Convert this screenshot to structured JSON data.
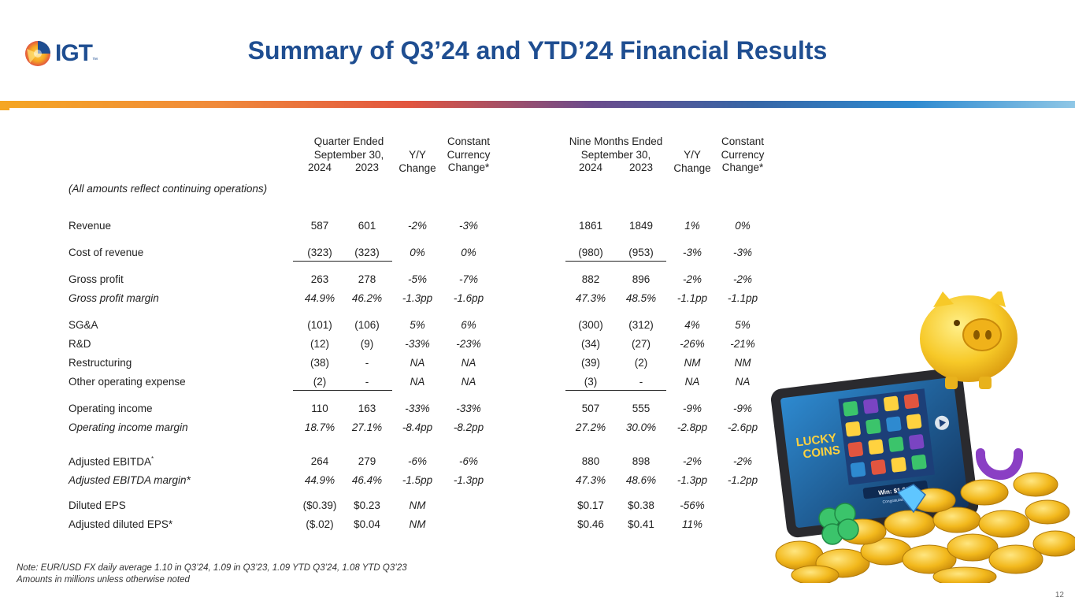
{
  "title": "Summary of Q3’24 and YTD’24 Financial Results",
  "logo": {
    "text": "IGT",
    "tm": "™"
  },
  "headers": {
    "quarter_group": [
      "Quarter Ended",
      "September 30,"
    ],
    "nine_group": [
      "Nine Months Ended",
      "September 30,"
    ],
    "year_2024": "2024",
    "year_2023": "2023",
    "yy": [
      "Y/Y",
      "Change"
    ],
    "cc": [
      "Constant",
      "Currency",
      "Change*"
    ]
  },
  "continuing_note": "(All amounts reflect continuing operations)",
  "rows": [
    {
      "label": "Revenue",
      "italic": false,
      "q24": "587",
      "q23": "601",
      "qyy": "-2%",
      "qcc": "-3%",
      "n24": "1861",
      "n23": "1849",
      "nyy": "1%",
      "ncc": "0%"
    },
    {
      "label": "Cost of revenue",
      "italic": false,
      "q24": "(323)",
      "q23": "(323)",
      "qyy": "0%",
      "qcc": "0%",
      "n24": "(980)",
      "n23": "(953)",
      "nyy": "-3%",
      "ncc": "-3%"
    },
    {
      "label": "Gross profit",
      "italic": false,
      "q24": "263",
      "q23": "278",
      "qyy": "-5%",
      "qcc": "-7%",
      "n24": "882",
      "n23": "896",
      "nyy": "-2%",
      "ncc": "-2%"
    },
    {
      "label": "Gross profit margin",
      "italic": true,
      "q24": "44.9%",
      "q23": "46.2%",
      "qyy": "-1.3pp",
      "qcc": "-1.6pp",
      "n24": "47.3%",
      "n23": "48.5%",
      "nyy": "-1.1pp",
      "ncc": "-1.1pp"
    },
    {
      "label": "SG&A",
      "italic": false,
      "q24": "(101)",
      "q23": "(106)",
      "qyy": "5%",
      "qcc": "6%",
      "n24": "(300)",
      "n23": "(312)",
      "nyy": "4%",
      "ncc": "5%"
    },
    {
      "label": "R&D",
      "italic": false,
      "q24": "(12)",
      "q23": "(9)",
      "qyy": "-33%",
      "qcc": "-23%",
      "n24": "(34)",
      "n23": "(27)",
      "nyy": "-26%",
      "ncc": "-21%"
    },
    {
      "label": "Restructuring",
      "italic": false,
      "q24": "(38)",
      "q23": "-",
      "qyy": "NA",
      "qcc": "NA",
      "n24": "(39)",
      "n23": "(2)",
      "nyy": "NM",
      "ncc": "NM"
    },
    {
      "label": "Other operating expense",
      "italic": false,
      "q24": "(2)",
      "q23": "-",
      "qyy": "NA",
      "qcc": "NA",
      "n24": "(3)",
      "n23": "-",
      "nyy": "NA",
      "ncc": "NA"
    },
    {
      "label": "Operating income",
      "italic": false,
      "q24": "110",
      "q23": "163",
      "qyy": "-33%",
      "qcc": "-33%",
      "n24": "507",
      "n23": "555",
      "nyy": "-9%",
      "ncc": "-9%"
    },
    {
      "label": "Operating income margin",
      "italic": true,
      "q24": "18.7%",
      "q23": "27.1%",
      "qyy": "-8.4pp",
      "qcc": "-8.2pp",
      "n24": "27.2%",
      "n23": "30.0%",
      "nyy": "-2.8pp",
      "ncc": "-2.6pp"
    },
    {
      "label": "Adjusted EBITDA",
      "sup": "*",
      "italic": false,
      "q24": "264",
      "q23": "279",
      "qyy": "-6%",
      "qcc": "-6%",
      "n24": "880",
      "n23": "898",
      "nyy": "-2%",
      "ncc": "-2%"
    },
    {
      "label": "Adjusted EBITDA margin*",
      "italic": true,
      "q24": "44.9%",
      "q23": "46.4%",
      "qyy": "-1.5pp",
      "qcc": "-1.3pp",
      "n24": "47.3%",
      "n23": "48.6%",
      "nyy": "-1.3pp",
      "ncc": "-1.2pp"
    },
    {
      "label": "Diluted EPS",
      "italic": false,
      "q24": "($0.39)",
      "q23": "$0.23",
      "qyy": "NM",
      "qcc": "",
      "n24": "$0.17",
      "n23": "$0.38",
      "nyy": "-56%",
      "ncc": ""
    },
    {
      "label": "Adjusted diluted EPS*",
      "italic": false,
      "q24": "($.02)",
      "q23": "$0.04",
      "qyy": "NM",
      "qcc": "",
      "n24": "$0.46",
      "n23": "$0.41",
      "nyy": "11%",
      "ncc": ""
    }
  ],
  "notes": [
    "Note: EUR/USD FX daily average 1.10 in Q3’24, 1.09 in Q3’23, 1.09 YTD Q3’24, 1.08 YTD Q3’23",
    "Amounts in millions unless otherwise noted"
  ],
  "page_number": "12",
  "art": {
    "game_title": [
      "LUCKY",
      "COINS"
    ],
    "win_text": "Win: $1,000",
    "congrats": "Congratulations!"
  },
  "colors": {
    "brand_blue": "#1f4e91",
    "gold": "#f2b81c"
  },
  "icons": [
    "igt-logo-icon",
    "piggy-bank-icon",
    "tablet-icon",
    "clover-icon",
    "horseshoe-icon",
    "gem-icon",
    "coin-icon"
  ]
}
